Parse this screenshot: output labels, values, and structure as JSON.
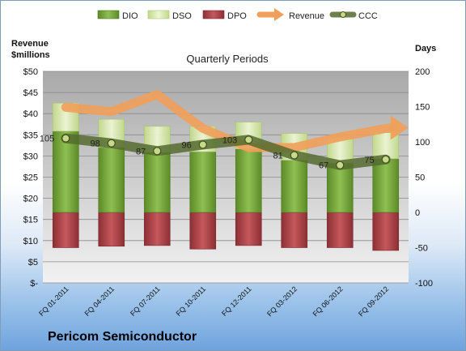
{
  "chart_data": {
    "type": "bar",
    "title": "Quarterly Periods",
    "left_axis_title": "Revenue\n$millions",
    "right_axis_title": "Days",
    "company": "Pericom Semiconductor",
    "categories": [
      "FQ 01-2011",
      "FQ 04-2011",
      "FQ 07-2011",
      "FQ 10-2011",
      "FQ 12-2011",
      "FQ 03-2012",
      "FQ 06-2012",
      "FQ 09-2012"
    ],
    "left_axis": {
      "ylim": [
        0,
        50
      ],
      "ticks": [
        "$-",
        "$5",
        "$10",
        "$15",
        "$20",
        "$25",
        "$30",
        "$35",
        "$40",
        "$45",
        "$50"
      ]
    },
    "right_axis": {
      "ylim": [
        -100,
        200
      ],
      "ticks": [
        "-100",
        "-50",
        "0",
        "50",
        "100",
        "150",
        "200"
      ]
    },
    "grid": true,
    "legend_position": "top",
    "series": [
      {
        "name": "DIO",
        "axis": "right",
        "kind": "bar",
        "color": "#77a13a",
        "values": [
          115,
          92,
          85,
          86,
          90,
          74,
          70,
          76
        ]
      },
      {
        "name": "DSO",
        "axis": "right",
        "kind": "bar",
        "color": "#d6e8a4",
        "values": [
          40,
          40,
          37,
          36,
          38,
          38,
          36,
          37
        ]
      },
      {
        "name": "DPO",
        "axis": "right",
        "kind": "bar",
        "color": "#b94a4f",
        "values": [
          -50,
          -48,
          -47,
          -52,
          -47,
          -50,
          -50,
          -54
        ]
      },
      {
        "name": "Revenue",
        "axis": "left",
        "kind": "line",
        "color": "#f0a05a",
        "values": [
          41.5,
          40.5,
          44.5,
          36.5,
          32,
          32,
          34.5,
          36.5
        ]
      },
      {
        "name": "CCC",
        "axis": "right",
        "kind": "line",
        "color": "#556b2f",
        "values": [
          105,
          98,
          87,
          96,
          103,
          81,
          67,
          75
        ],
        "labels": [
          "105",
          "98",
          "87",
          "96",
          "103",
          "81",
          "67",
          "75"
        ]
      }
    ]
  }
}
